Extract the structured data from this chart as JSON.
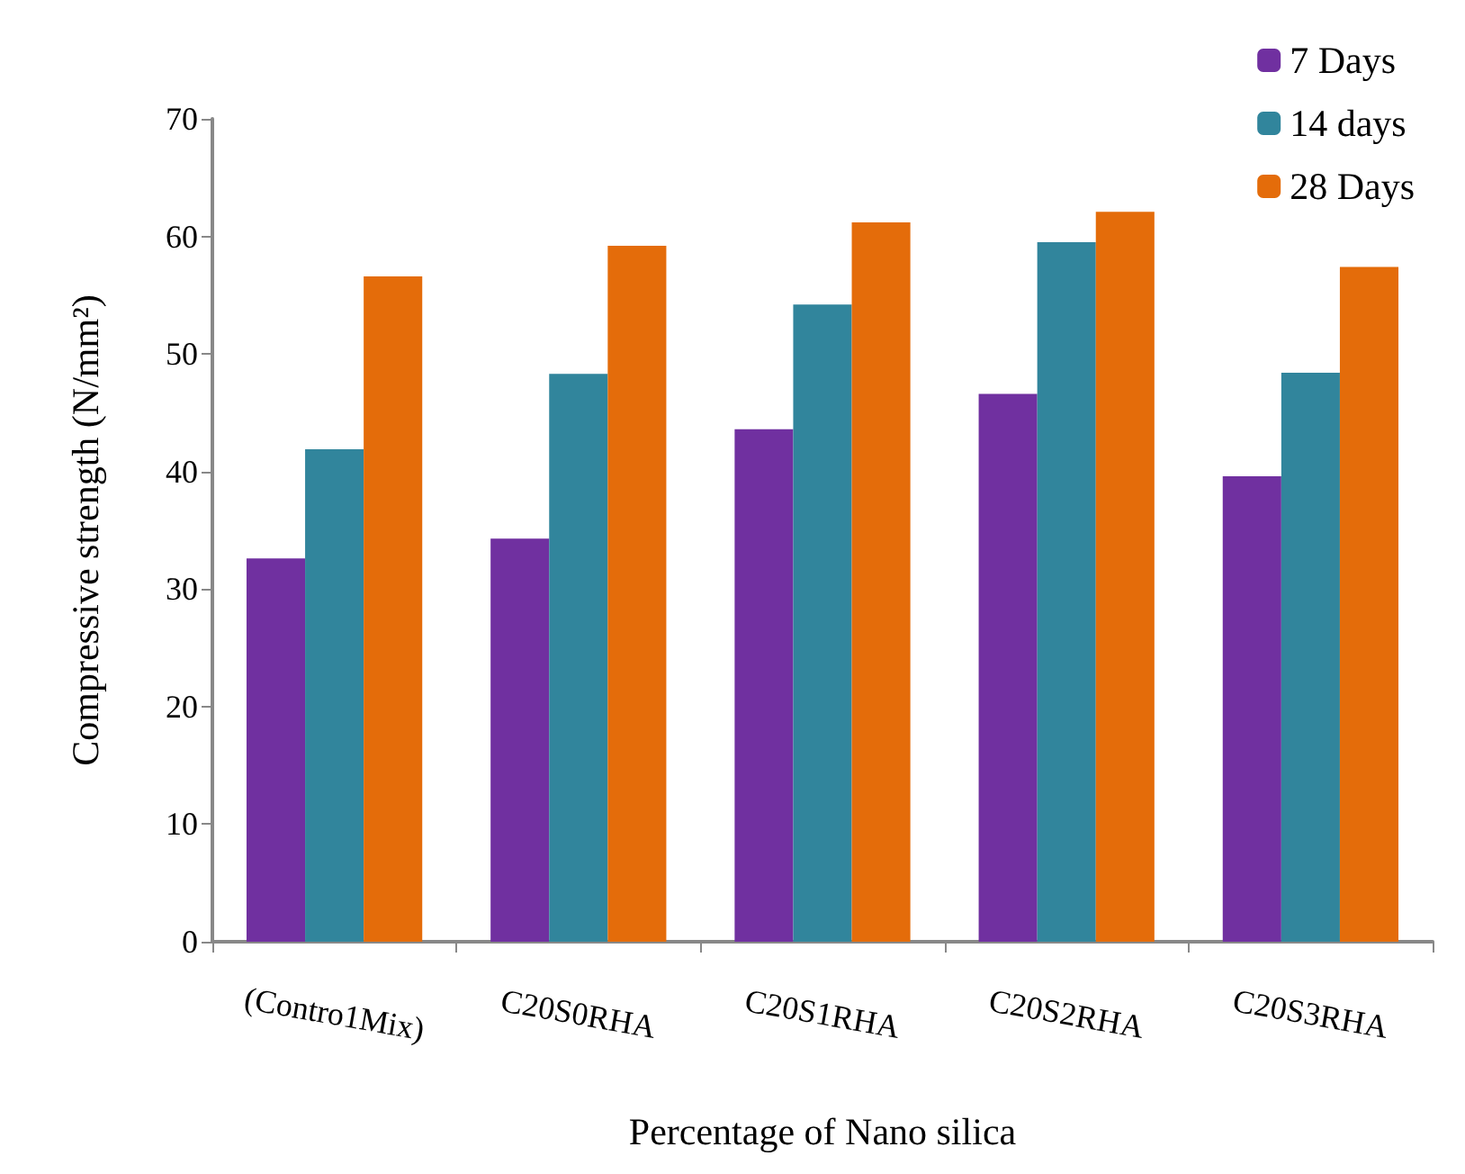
{
  "chart_data": {
    "type": "bar",
    "xlabel": "Percentage of Nano silica",
    "ylabel": "Compressive strength (N/mm²)",
    "categories": [
      "(Contro1Mix)",
      "C20S0RHA",
      "C20S1RHA",
      "C20S2RHA",
      "C20S3RHA"
    ],
    "series": [
      {
        "name": "7 Days",
        "color": "#7030a0",
        "values": [
          32.6,
          34.3,
          43.6,
          46.6,
          39.6
        ]
      },
      {
        "name": "14 days",
        "color": "#31859c",
        "values": [
          41.9,
          48.3,
          54.2,
          59.5,
          48.4
        ]
      },
      {
        "name": "28 Days",
        "color": "#e46c0a",
        "values": [
          56.6,
          59.2,
          61.2,
          62.1,
          57.4
        ]
      }
    ],
    "ylim": [
      0,
      70
    ],
    "yticks": [
      0,
      10,
      20,
      30,
      40,
      50,
      60,
      70
    ],
    "grid": false,
    "legend": "top right"
  }
}
